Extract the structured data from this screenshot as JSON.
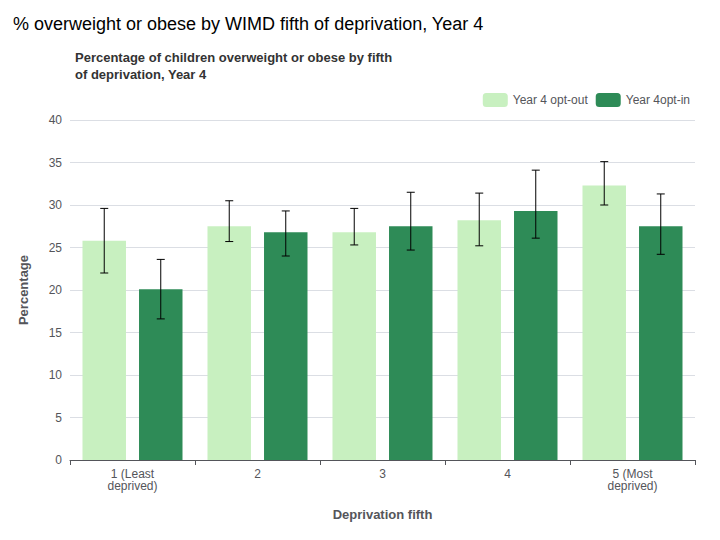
{
  "chart_data": {
    "type": "bar",
    "title": "% overweight or obese by WIMD fifth of deprivation, Year 4",
    "subtitle": "Percentage of children overweight or obese by fifth\nof deprivation, Year 4",
    "xlabel": "Deprivation fifth",
    "ylabel": "Percentage",
    "categories": [
      "1 (Least\ndeprived)",
      "2",
      "3",
      "4",
      "5 (Most\ndeprived)"
    ],
    "series": [
      {
        "name": "Year 4 opt-out",
        "color": "#c8f0c0",
        "values": [
          25.8,
          27.5,
          26.8,
          28.2,
          32.3
        ],
        "error_low": [
          3.8,
          1.8,
          1.5,
          3.0,
          2.3
        ],
        "error_high": [
          3.8,
          3.0,
          2.8,
          3.2,
          2.8
        ]
      },
      {
        "name": "Year 4opt-in",
        "color": "#2e8b57",
        "values": [
          20.1,
          26.8,
          27.5,
          29.3,
          27.5
        ],
        "error_low": [
          3.5,
          2.8,
          2.8,
          3.2,
          3.3
        ],
        "error_high": [
          3.5,
          2.5,
          4.0,
          4.8,
          3.8
        ]
      }
    ],
    "ylim": [
      0,
      40
    ],
    "yticks": [
      0,
      5,
      10,
      15,
      20,
      25,
      30,
      35,
      40
    ],
    "grid": true,
    "legend": "upper right"
  }
}
